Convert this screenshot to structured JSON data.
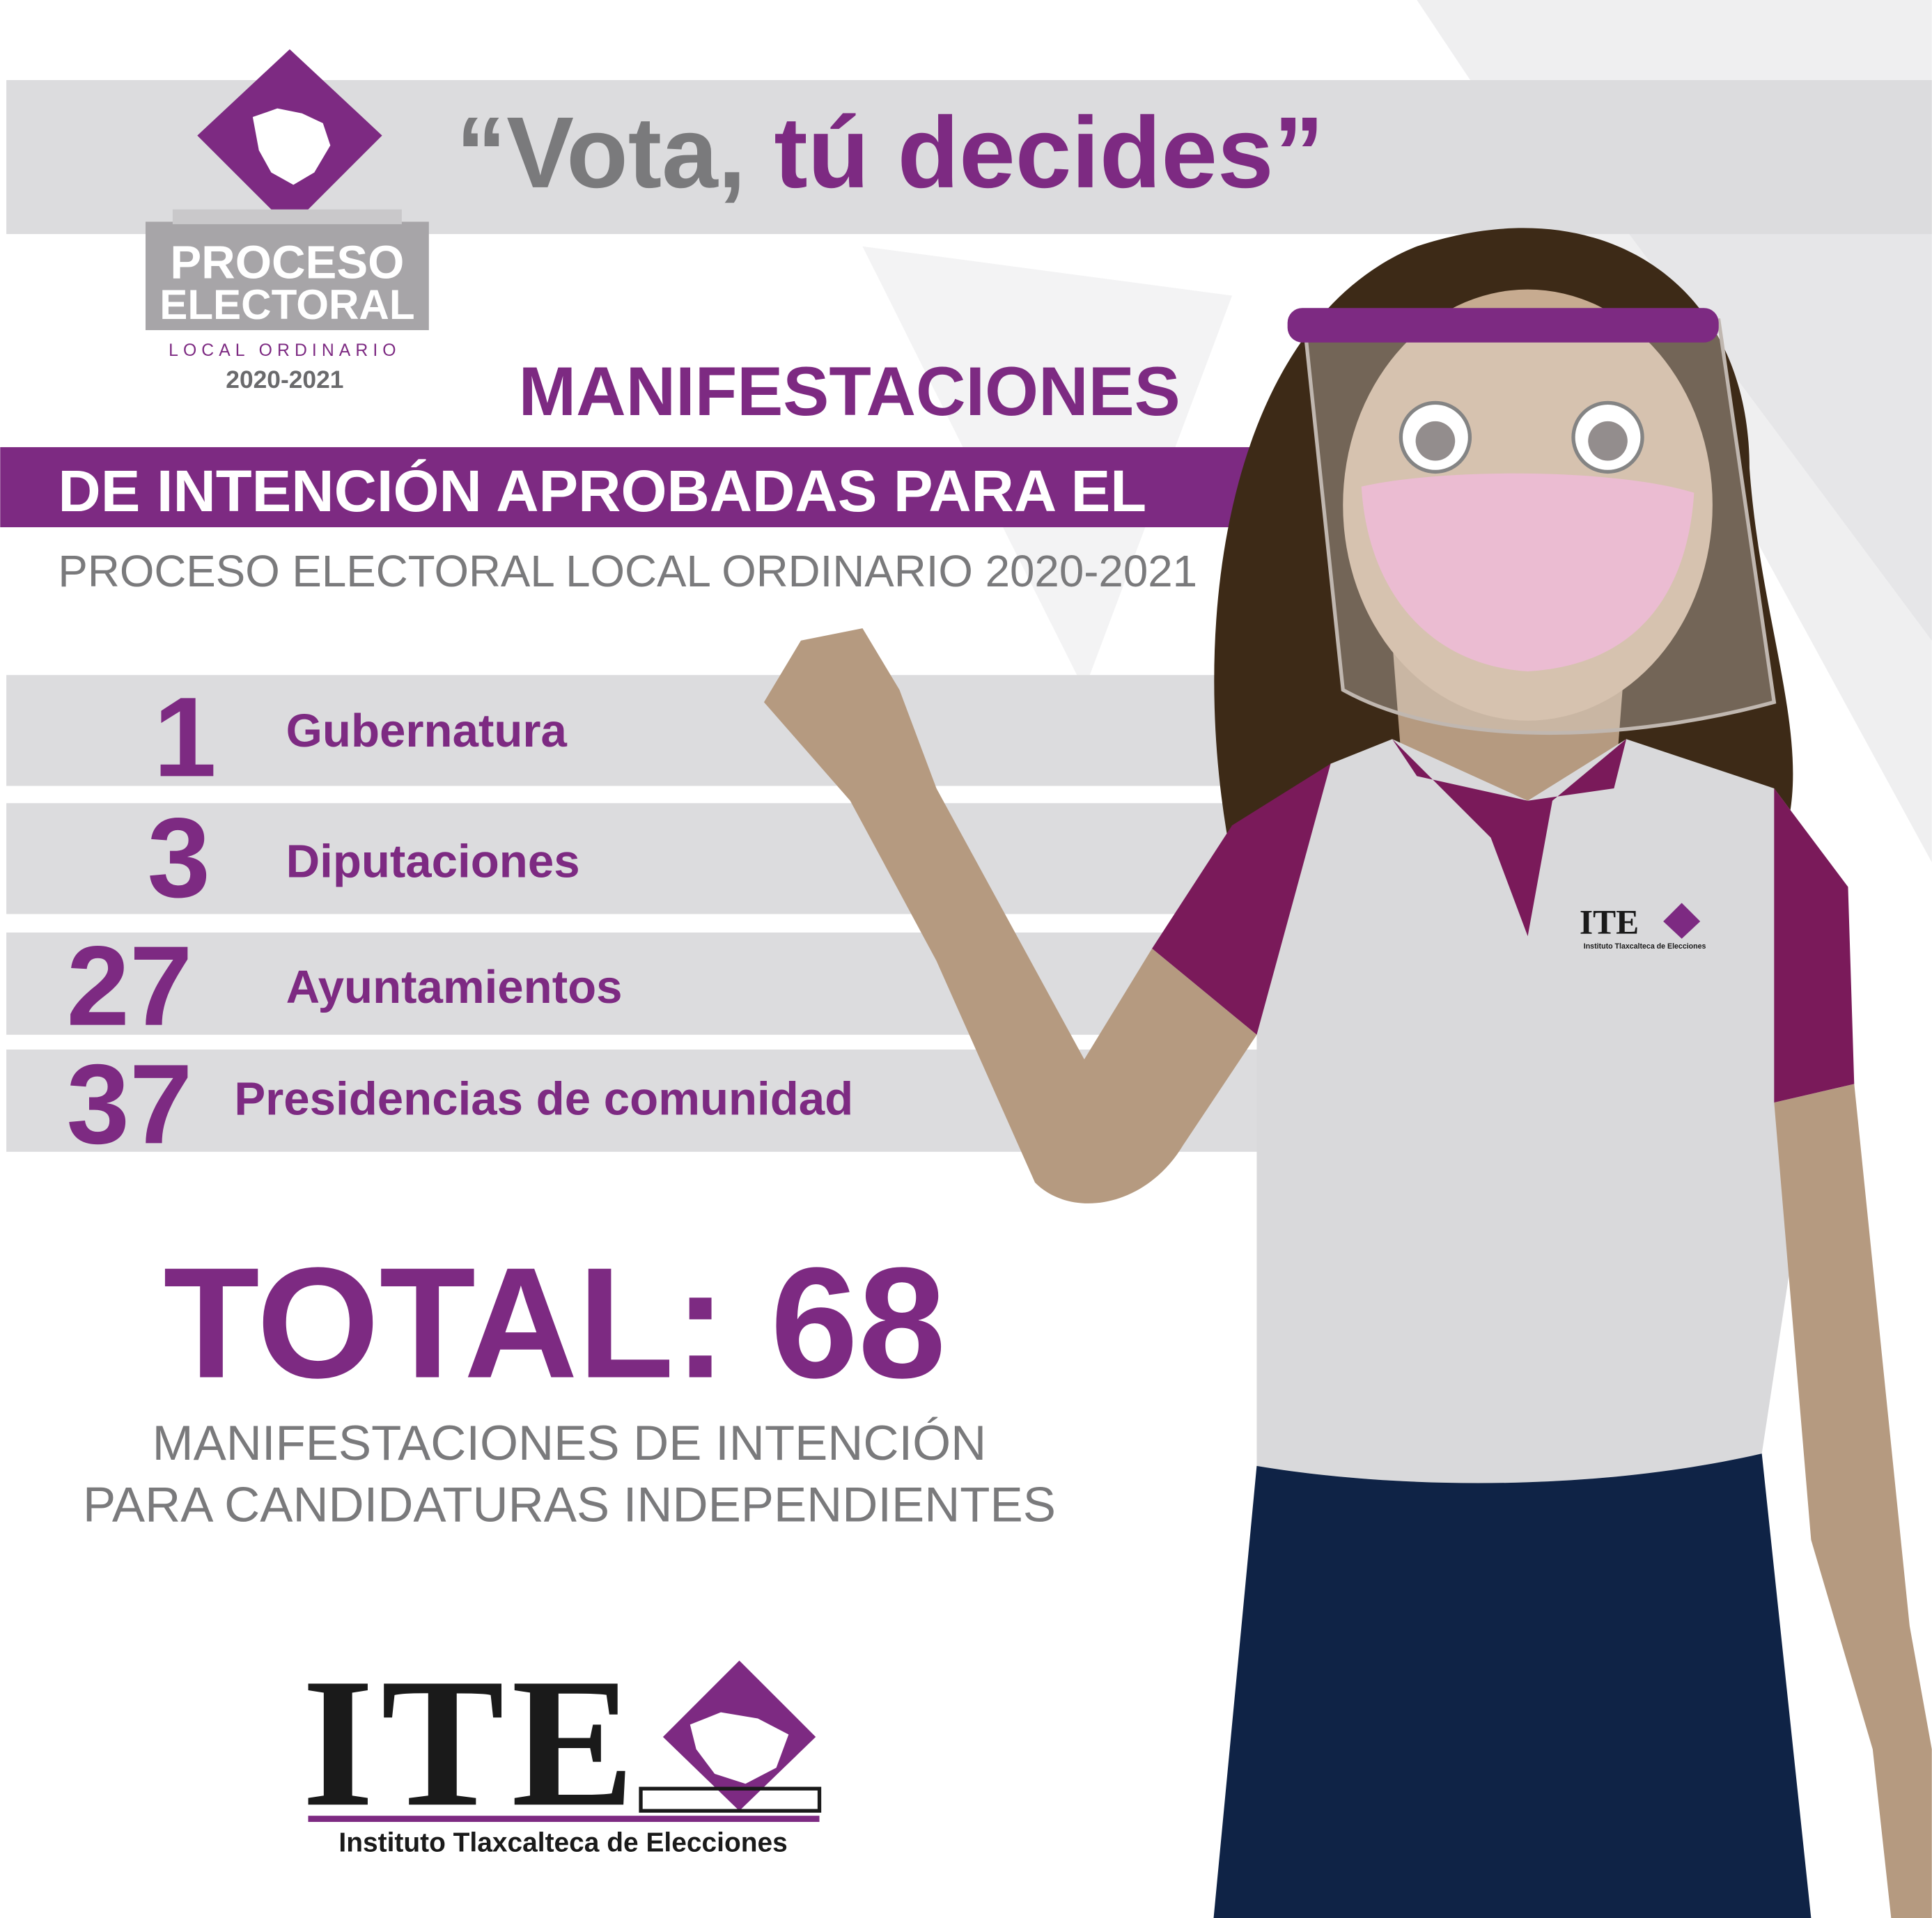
{
  "slogan": {
    "quoted_start": "“Vota,",
    "quoted_end": "tú decides”"
  },
  "process_logo": {
    "line1": "PROCESO",
    "line2": "ELECTORAL",
    "line3": "LOCAL ORDINARIO",
    "years": "2020-2021"
  },
  "heading": {
    "line1": "MANIFESTACIONES",
    "line2": "DE INTENCIÓN APROBADAS PARA EL",
    "line3": "PROCESO ELECTORAL LOCAL ORDINARIO 2020-2021"
  },
  "items": [
    {
      "count": 1,
      "label": "Gubernatura"
    },
    {
      "count": 3,
      "label": "Diputaciones"
    },
    {
      "count": 27,
      "label": "Ayuntamientos"
    },
    {
      "count": 37,
      "label": "Presidencias de comunidad"
    }
  ],
  "total": {
    "text": "TOTAL: 68",
    "caption_line1": "MANIFESTACIONES DE INTENCIÓN",
    "caption_line2": "PARA CANDIDATURAS INDEPENDIENTES"
  },
  "institute": {
    "acronym": "ITE",
    "name": "Instituto Tlaxcalteca de Elecciones"
  }
}
